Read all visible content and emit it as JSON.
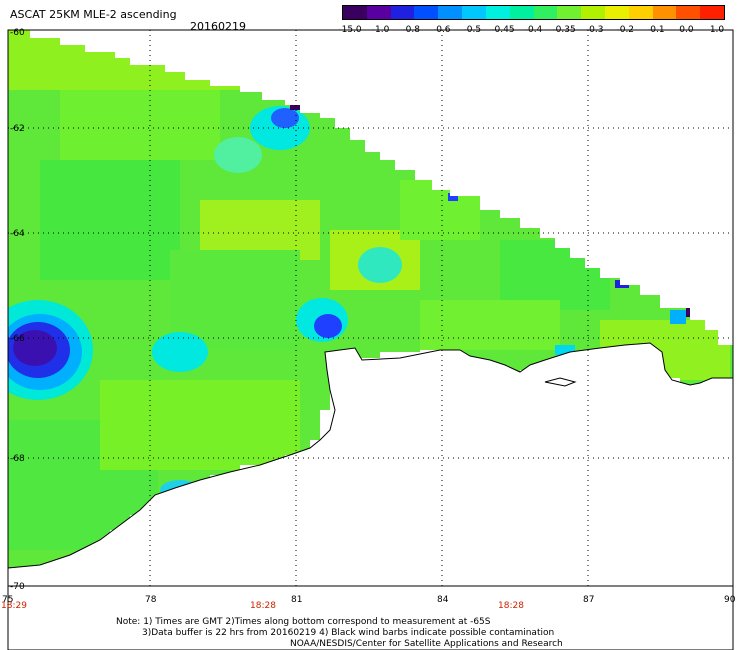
{
  "header": {
    "title": "ASCAT 25KM MLE-2 ascending",
    "date": "20160219"
  },
  "colorbar": {
    "labels": [
      "-15.0",
      "-1.0",
      "-0.8",
      "-0.6",
      "-0.5",
      "-0.45",
      "-0.4",
      "-0.35",
      "-0.3",
      "-0.2",
      "-0.1",
      "0.0",
      "1.0"
    ],
    "colors": [
      "#3a0060",
      "#5a00a0",
      "#2020e0",
      "#0070ff",
      "#00b0ff",
      "#00e8e8",
      "#00f0a0",
      "#40f040",
      "#80f020",
      "#c0f000",
      "#f0e000",
      "#ff9000",
      "#ff2000"
    ]
  },
  "map": {
    "lat_labels": [
      "-60",
      "-62",
      "-64",
      "-66",
      "-68",
      "-70"
    ],
    "lon_labels": [
      "75",
      "78",
      "81",
      "84",
      "87",
      "90"
    ],
    "time_labels": [
      "18:29",
      "18:28",
      "18:28"
    ]
  },
  "footer": {
    "line1": "Note: 1) Times are GMT 2)Times along bottom correspond to measurement at -65S",
    "line2": "3)Data buffer is 22 hrs from 20160219 4) Black wind barbs indicate possible contamination",
    "line3": "NOAA/NESDIS/Center for Satellite Applications and Research"
  }
}
